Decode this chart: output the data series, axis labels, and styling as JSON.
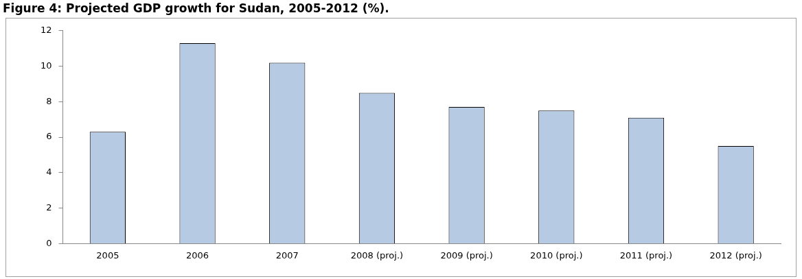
{
  "chart_data": {
    "type": "bar",
    "title": "Figure 4: Projected GDP growth for Sudan, 2005-2012 (%).",
    "categories": [
      "2005",
      "2006",
      "2007",
      "2008 (proj.)",
      "2009 (proj.)",
      "2010 (proj.)",
      "2011 (proj.)",
      "2012 (proj.)"
    ],
    "values": [
      6.3,
      11.3,
      10.2,
      8.5,
      7.7,
      7.5,
      7.1,
      5.5
    ],
    "color": "#b7cae3",
    "ylim": [
      0,
      12
    ],
    "yticks": [
      0,
      2,
      4,
      6,
      8,
      10,
      12
    ],
    "grid": false,
    "legend": false
  }
}
